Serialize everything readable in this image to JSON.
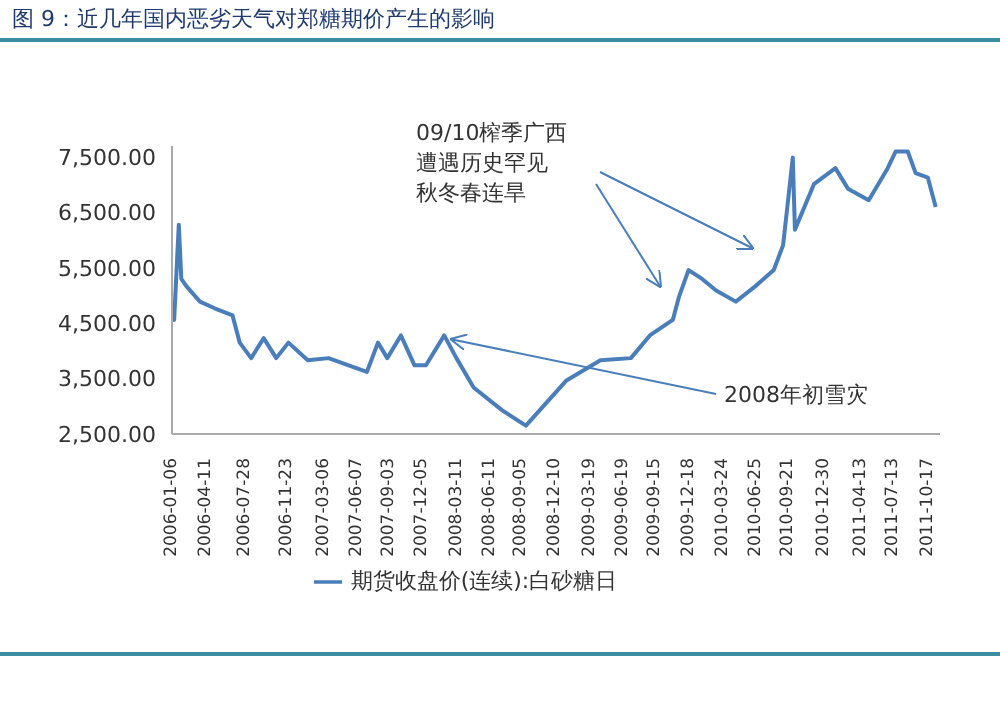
{
  "chart_data": {
    "type": "line",
    "title": "图 9：近几年国内恶劣天气对郑糖期价产生的影响",
    "x": [
      "2006-01-06",
      "2006-01-12",
      "2006-01-25",
      "2006-02-01",
      "2006-02-15",
      "2006-03-25",
      "2006-05-05",
      "2006-06-24",
      "2006-07-14",
      "2006-08-15",
      "2006-09-19",
      "2006-10-24",
      "2006-11-27",
      "2007-01-20",
      "2007-03-19",
      "2007-05-14",
      "2007-07-04",
      "2007-08-04",
      "2007-08-30",
      "2007-10-07",
      "2007-11-14",
      "2007-12-16",
      "2008-02-05",
      "2008-03-10",
      "2008-04-27",
      "2008-07-15",
      "2008-09-20",
      "2009-01-10",
      "2009-04-16",
      "2009-07-10",
      "2009-09-01",
      "2009-11-04",
      "2009-11-21",
      "2009-12-18",
      "2010-01-25",
      "2010-03-05",
      "2010-04-29",
      "2010-06-23",
      "2010-08-13",
      "2010-09-08",
      "2010-10-05",
      "2010-10-11",
      "2010-12-03",
      "2011-02-01",
      "2011-03-08",
      "2011-05-05",
      "2011-06-27",
      "2011-07-19",
      "2011-08-22",
      "2011-09-13",
      "2011-10-17",
      "2011-11-08"
    ],
    "series": [
      {
        "name": "期货收盘价(连续):白砂糖日",
        "color": "#4a7ebb",
        "values": [
          4600,
          4560,
          6280,
          5300,
          5170,
          4890,
          4770,
          4640,
          4150,
          3870,
          4230,
          3870,
          4150,
          3830,
          3870,
          3740,
          3620,
          4150,
          3870,
          4280,
          3740,
          3740,
          4280,
          3870,
          3340,
          2930,
          2650,
          3460,
          3830,
          3870,
          4280,
          4560,
          4970,
          5460,
          5300,
          5090,
          4890,
          5170,
          5460,
          5910,
          7490,
          6190,
          7010,
          7300,
          6930,
          6720,
          7300,
          7600,
          7600,
          7210,
          7130,
          6600
        ]
      }
    ],
    "ylim": [
      2500,
      7700
    ],
    "yticks": [
      {
        "value": 2500,
        "label": "2,500.00"
      },
      {
        "value": 3500,
        "label": "3,500.00"
      },
      {
        "value": 4500,
        "label": "4,500.00"
      },
      {
        "value": 5500,
        "label": "5,500.00"
      },
      {
        "value": 6500,
        "label": "6,500.00"
      },
      {
        "value": 7500,
        "label": "7,500.00"
      }
    ],
    "xlim": [
      "2006-01-06",
      "2011-11-20"
    ],
    "xticks": [
      "2006-01-06",
      "2006-04-11",
      "2006-07-28",
      "2006-11-23",
      "2007-03-06",
      "2007-06-07",
      "2007-09-03",
      "2007-12-05",
      "2008-03-11",
      "2008-06-11",
      "2008-09-05",
      "2008-12-10",
      "2009-03-19",
      "2009-06-19",
      "2009-09-15",
      "2009-12-18",
      "2010-03-24",
      "2010-06-25",
      "2010-09-21",
      "2010-12-30",
      "2011-04-13",
      "2011-07-13",
      "2011-10-17"
    ],
    "annotations": [
      "09/10榨季广西遭遇历史罕见秋冬春连旱",
      {
        "text": "2008年初雪灾",
        "x": "2008-02-05",
        "y": 4280
      }
    ],
    "legend": "bottom",
    "grid": false,
    "marker": "none",
    "line_style": "solid"
  }
}
